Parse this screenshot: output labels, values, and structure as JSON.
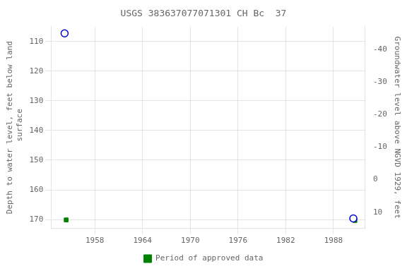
{
  "chart_data": {
    "type": "scatter",
    "title": "USGS 383637077071301 CH Bc  37",
    "ylabel": "Depth to water level, feet below land\n surface",
    "y2label": "Groundwater level above NGVD 1929, feet",
    "xlim": [
      1952.5,
      1992
    ],
    "xticks": [
      1958,
      1964,
      1970,
      1976,
      1982,
      1988
    ],
    "ylim": [
      173,
      105
    ],
    "yticks": [
      110,
      120,
      130,
      140,
      150,
      160,
      170
    ],
    "y2lim": [
      15,
      -47
    ],
    "y2ticks": [
      10,
      0,
      -10,
      -20,
      -30,
      -40
    ],
    "grid": true,
    "series": [
      {
        "color": "#0000cc",
        "marker": "circle",
        "x": [
          1954.2,
          1990.5
        ],
        "values": [
          107.3,
          169.6
        ]
      },
      {
        "name": "Period of approved data",
        "color": "#008000",
        "marker": "square",
        "x": [
          1954.4,
          1990.7
        ],
        "values": [
          170.1,
          170.3
        ]
      }
    ]
  }
}
